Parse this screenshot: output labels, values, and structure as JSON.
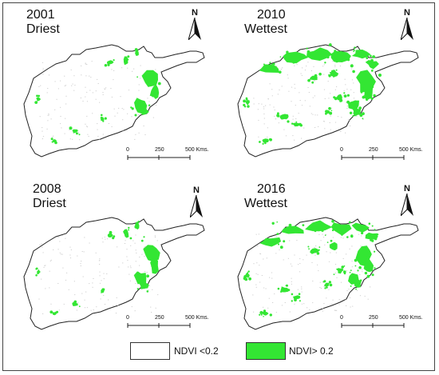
{
  "colors": {
    "vegetation": "#33e633",
    "background": "#ffffff",
    "outline": "#222222",
    "noise": "#cfcfcf"
  },
  "panels": [
    {
      "year": "2001",
      "label": "Driest",
      "vegetation": "low"
    },
    {
      "year": "2010",
      "label": "Wettest",
      "vegetation": "high"
    },
    {
      "year": "2008",
      "label": "Driest",
      "vegetation": "low"
    },
    {
      "year": "2016",
      "label": "Wettest",
      "vegetation": "high"
    }
  ],
  "north_arrow": {
    "letter": "N",
    "icon": "north-arrow-icon"
  },
  "scale_bar": {
    "ticks": [
      "0",
      "250",
      "500 Kms."
    ]
  },
  "legend": {
    "items": [
      {
        "label": "NDVI <0.2",
        "color": "#ffffff"
      },
      {
        "label": "NDVI> 0.2",
        "color": "#33e633"
      }
    ]
  }
}
